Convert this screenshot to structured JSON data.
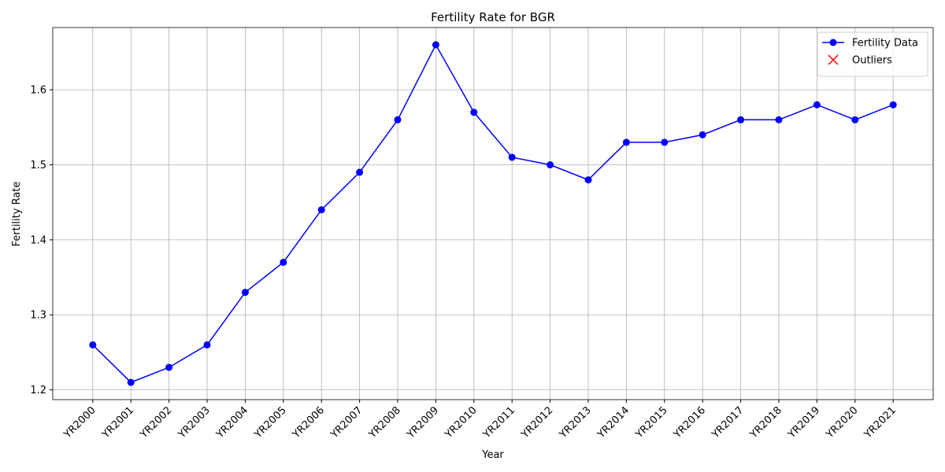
{
  "chart_data": {
    "type": "line",
    "title": "Fertility Rate for BGR",
    "xlabel": "Year",
    "ylabel": "Fertility Rate",
    "categories": [
      "YR2000",
      "YR2001",
      "YR2002",
      "YR2003",
      "YR2004",
      "YR2005",
      "YR2006",
      "YR2007",
      "YR2008",
      "YR2009",
      "YR2010",
      "YR2011",
      "YR2012",
      "YR2013",
      "YR2014",
      "YR2015",
      "YR2016",
      "YR2017",
      "YR2018",
      "YR2019",
      "YR2020",
      "YR2021"
    ],
    "series": [
      {
        "name": "Fertility Data",
        "color": "#0000ff",
        "marker": "o",
        "values": [
          1.26,
          1.21,
          1.23,
          1.26,
          1.33,
          1.37,
          1.44,
          1.49,
          1.56,
          1.66,
          1.57,
          1.51,
          1.5,
          1.48,
          1.53,
          1.53,
          1.54,
          1.56,
          1.56,
          1.58,
          1.56,
          1.58
        ]
      },
      {
        "name": "Outliers",
        "color": "#ff0000",
        "marker": "x",
        "values": [
          null,
          null,
          null,
          null,
          null,
          null,
          null,
          null,
          null,
          null,
          null,
          null,
          null,
          null,
          null,
          null,
          null,
          null,
          null,
          null,
          null,
          null
        ]
      }
    ],
    "ylim": [
      1.187,
      1.683
    ],
    "yticks": [
      1.2,
      1.3,
      1.4,
      1.5,
      1.6
    ],
    "grid": true,
    "legend": "upper right"
  }
}
